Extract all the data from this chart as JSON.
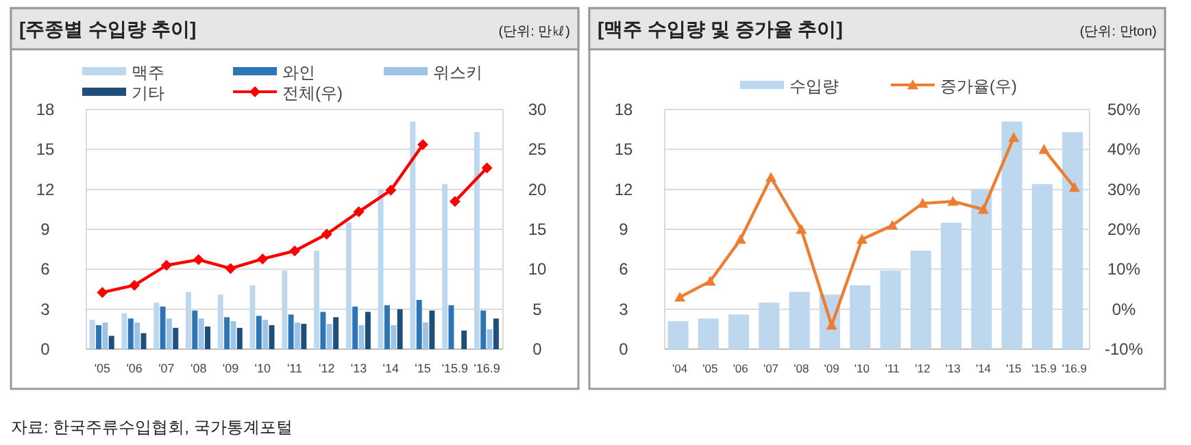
{
  "chart_data": [
    {
      "type": "bar",
      "title": "[주종별 수입량 추이]",
      "subtitle": "(단위: 만㎘)",
      "categories": [
        "'05",
        "'06",
        "'07",
        "'08",
        "'09",
        "'10",
        "'11",
        "'12",
        "'13",
        "'14",
        "'15",
        "'15.9",
        "'16.9"
      ],
      "series": [
        {
          "name": "맥주",
          "color": "#bdd7ee",
          "values": [
            2.2,
            2.7,
            3.5,
            4.3,
            4.1,
            4.8,
            5.9,
            7.4,
            9.5,
            12.0,
            17.1,
            12.4,
            16.3
          ]
        },
        {
          "name": "와인",
          "color": "#2e75b6",
          "values": [
            1.8,
            2.3,
            3.2,
            2.9,
            2.4,
            2.5,
            2.6,
            2.8,
            3.2,
            3.3,
            3.7,
            3.3,
            2.9
          ]
        },
        {
          "name": "위스키",
          "color": "#9dc3e6",
          "values": [
            2.0,
            2.0,
            2.3,
            2.3,
            2.1,
            2.2,
            2.0,
            1.9,
            1.8,
            1.8,
            2.0,
            null,
            1.5
          ]
        },
        {
          "name": "기타",
          "color": "#1f4e79",
          "values": [
            1.0,
            1.2,
            1.6,
            1.7,
            1.6,
            1.8,
            1.9,
            2.4,
            2.8,
            3.0,
            2.9,
            1.4,
            2.3
          ]
        },
        {
          "name": "전체(우)",
          "type": "line",
          "axis": "y2",
          "color": "#ff0000",
          "marker": "diamond",
          "values": [
            7.1,
            8.0,
            10.5,
            11.2,
            10.1,
            11.3,
            12.3,
            14.4,
            17.2,
            19.9,
            25.6,
            null,
            null
          ]
        },
        {
          "type": "line",
          "axis": "y2",
          "color": "#ff0000",
          "marker": "diamond",
          "values": [
            null,
            null,
            null,
            null,
            null,
            null,
            null,
            null,
            null,
            null,
            null,
            18.5,
            22.7
          ]
        }
      ],
      "ylim": [
        0,
        18
      ],
      "yticks": [
        0,
        3,
        6,
        9,
        12,
        15,
        18
      ],
      "y2lim": [
        0,
        30
      ],
      "y2ticks": [
        0,
        5,
        10,
        15,
        20,
        25,
        30
      ],
      "grid": "y",
      "legend": "top",
      "annotations": [
        "자료: 한국주류수입협회, 국가통계포털"
      ]
    },
    {
      "type": "bar",
      "title": "[맥주 수입량 및 증가율 추이]",
      "subtitle": "(단위: 만ton)",
      "categories": [
        "'04",
        "'05",
        "'06",
        "'07",
        "'08",
        "'09",
        "'10",
        "'11",
        "'12",
        "'13",
        "'14",
        "'15",
        "'15.9",
        "'16.9"
      ],
      "series": [
        {
          "name": "수입량",
          "color": "#bdd7ee",
          "values": [
            2.1,
            2.3,
            2.6,
            3.5,
            4.3,
            4.1,
            4.8,
            5.9,
            7.4,
            9.5,
            12.0,
            17.1,
            12.4,
            16.3
          ]
        },
        {
          "name": "증가율(우)",
          "type": "line",
          "axis": "y2",
          "color": "#ed7d31",
          "marker": "triangle",
          "values": [
            3,
            7,
            17.5,
            33,
            20,
            -4,
            17.5,
            21,
            26.5,
            27,
            25,
            43,
            null,
            null
          ]
        },
        {
          "type": "line",
          "axis": "y2",
          "color": "#ed7d31",
          "marker": "triangle",
          "values": [
            null,
            null,
            null,
            null,
            null,
            null,
            null,
            null,
            null,
            null,
            null,
            null,
            40,
            30.5
          ]
        }
      ],
      "ylim": [
        0,
        18
      ],
      "yticks": [
        0,
        3,
        6,
        9,
        12,
        15,
        18
      ],
      "y2lim": [
        -10,
        50
      ],
      "y2ticks": [
        {
          "value": -10,
          "label": "-10%"
        },
        {
          "value": 0,
          "label": "0%"
        },
        {
          "value": 10,
          "label": "10%"
        },
        {
          "value": 20,
          "label": "20%"
        },
        {
          "value": 30,
          "label": "30%"
        },
        {
          "value": 40,
          "label": "40%"
        },
        {
          "value": 50,
          "label": "50%"
        }
      ],
      "grid": "y",
      "legend": "top"
    }
  ]
}
